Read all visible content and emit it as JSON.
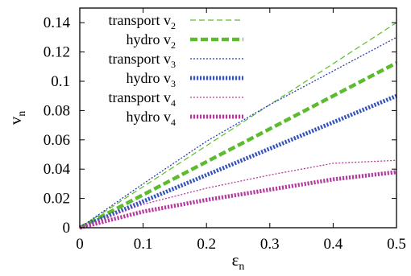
{
  "chart_data": {
    "type": "line",
    "xlabel": "ε",
    "xlabel_sub": "n",
    "ylabel": "v",
    "ylabel_sub": "n",
    "xlim": [
      0,
      0.5
    ],
    "ylim": [
      0,
      0.15
    ],
    "x_ticks": [
      0,
      0.1,
      0.2,
      0.3,
      0.4,
      0.5
    ],
    "x_tick_labels": [
      "0",
      "0.1",
      "0.2",
      "0.3",
      "0.4",
      "0.5"
    ],
    "y_ticks": [
      0,
      0.02,
      0.04,
      0.06,
      0.08,
      0.1,
      0.12,
      0.14
    ],
    "y_tick_labels": [
      "0",
      "0.02",
      "0.04",
      "0.06",
      "0.08",
      "0.1",
      "0.12",
      "0.14"
    ],
    "grid": false,
    "legend_position": "top-left",
    "series": [
      {
        "name": "transport v",
        "name_sub": "2",
        "color": "#5dbb2e",
        "style": "dashed-thin",
        "x": [
          0,
          0.1,
          0.2,
          0.3,
          0.4,
          0.5
        ],
        "y": [
          0,
          0.028,
          0.056,
          0.084,
          0.112,
          0.14
        ]
      },
      {
        "name": "hydro v",
        "name_sub": "2",
        "color": "#5dbb2e",
        "style": "dashed-thick",
        "x": [
          0,
          0.1,
          0.2,
          0.3,
          0.4,
          0.5
        ],
        "y": [
          0,
          0.0225,
          0.045,
          0.0675,
          0.09,
          0.1125
        ]
      },
      {
        "name": "transport v",
        "name_sub": "3",
        "color": "#2a3fa8",
        "style": "dotted-thin",
        "x": [
          0,
          0.1,
          0.2,
          0.3,
          0.4,
          0.5
        ],
        "y": [
          0,
          0.03,
          0.059,
          0.084,
          0.107,
          0.13
        ]
      },
      {
        "name": "hydro v",
        "name_sub": "3",
        "color": "#3453b8",
        "style": "dotted-thick",
        "x": [
          0,
          0.1,
          0.2,
          0.3,
          0.4,
          0.5
        ],
        "y": [
          0,
          0.018,
          0.036,
          0.054,
          0.072,
          0.09
        ]
      },
      {
        "name": "transport v",
        "name_sub": "4",
        "color": "#b53a9e",
        "style": "dotted-thin",
        "x": [
          0,
          0.1,
          0.2,
          0.3,
          0.4,
          0.45,
          0.5
        ],
        "y": [
          0,
          0.016,
          0.027,
          0.036,
          0.044,
          0.045,
          0.046
        ]
      },
      {
        "name": "hydro v",
        "name_sub": "4",
        "color": "#b53a9e",
        "style": "dotted-thick",
        "x": [
          0,
          0.1,
          0.2,
          0.3,
          0.4,
          0.5
        ],
        "y": [
          0,
          0.011,
          0.019,
          0.026,
          0.033,
          0.038
        ]
      }
    ]
  }
}
